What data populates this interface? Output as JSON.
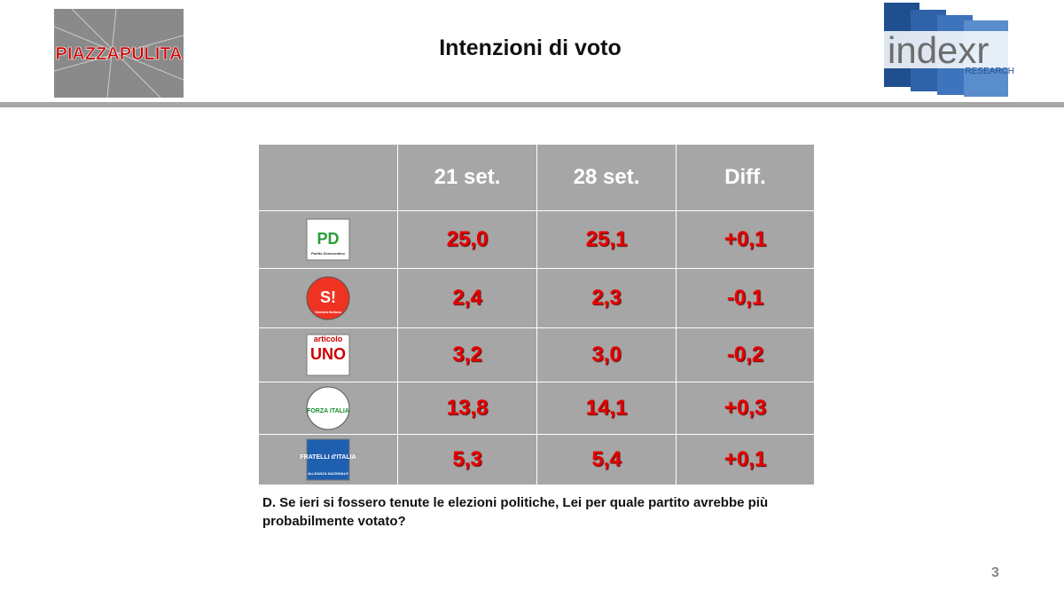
{
  "header": {
    "title": "Intenzioni di voto",
    "left_logo": "PIAZZAPULITA",
    "right_logo": {
      "name": "indexr",
      "sub": "RESEARCH"
    }
  },
  "table": {
    "columns": [
      "21 set.",
      "28 set.",
      "Diff."
    ],
    "rows": [
      {
        "party": {
          "mark": "PD",
          "caption": "Partito Democratico"
        },
        "cells": [
          "25,0",
          "25,1",
          "+0,1"
        ]
      },
      {
        "party": {
          "mark": "S!",
          "caption": "Sinistra Italiana"
        },
        "cells": [
          "2,4",
          "2,3",
          "-0,1"
        ]
      },
      {
        "party": {
          "mark": "UNO",
          "caption": "articolo"
        },
        "cells": [
          "3,2",
          "3,0",
          "-0,2"
        ]
      },
      {
        "party": {
          "mark": "FORZA ITALIA",
          "caption": ""
        },
        "cells": [
          "13,8",
          "14,1",
          "+0,3"
        ]
      },
      {
        "party": {
          "mark": "FRATELLI d'ITALIA",
          "caption": "ALLEANZA NAZIONALE"
        },
        "cells": [
          "5,3",
          "5,4",
          "+0,1"
        ]
      }
    ]
  },
  "question": "D. Se ieri si fossero tenute le elezioni politiche, Lei per quale partito avrebbe più probabilmente votato?",
  "page_number": "3"
}
